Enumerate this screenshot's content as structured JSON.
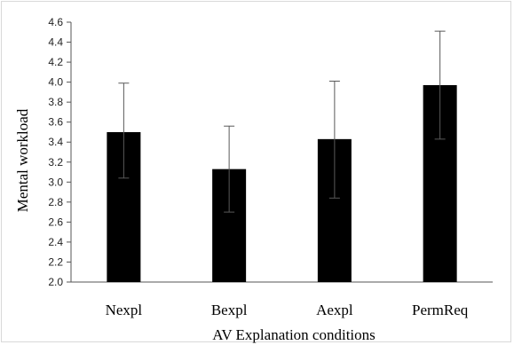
{
  "chart_data": {
    "type": "bar",
    "title": "",
    "xlabel": "AV Explanation  conditions",
    "ylabel": "Mental workload",
    "categories": [
      "Nexpl",
      "Bexpl",
      "Aexpl",
      "PermReq"
    ],
    "values": [
      3.5,
      3.13,
      3.43,
      3.97
    ],
    "error_low": [
      3.04,
      2.7,
      2.84,
      3.43
    ],
    "error_high": [
      3.99,
      3.56,
      4.01,
      4.51
    ],
    "ylim": [
      2.0,
      4.6
    ],
    "yticks": [
      "2.0",
      "2.2",
      "2.4",
      "2.6",
      "2.8",
      "3.0",
      "3.2",
      "3.4",
      "3.6",
      "3.8",
      "4.0",
      "4.2",
      "4.4",
      "4.6"
    ],
    "grid": false,
    "legend": "none",
    "bar_color": "#000000",
    "error_color": "#595959"
  }
}
